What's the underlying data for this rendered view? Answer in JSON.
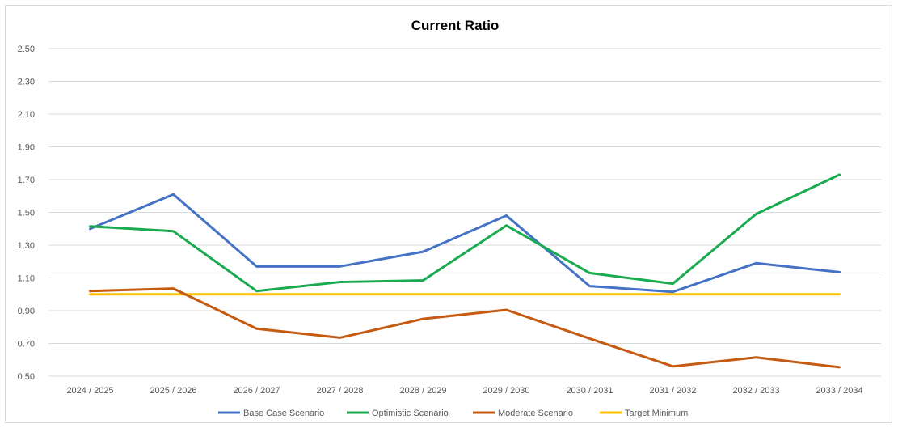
{
  "chart_data": {
    "type": "line",
    "title": "Current Ratio",
    "xlabel": "",
    "ylabel": "",
    "categories": [
      "2024 / 2025",
      "2025 / 2026",
      "2026 / 2027",
      "2027 / 2028",
      "2028 / 2029",
      "2029 / 2030",
      "2030 / 2031",
      "2031 / 2032",
      "2032 / 2033",
      "2033 / 2034"
    ],
    "ylim": [
      0.5,
      2.5
    ],
    "yticks": [
      "0.50",
      "0.70",
      "0.90",
      "1.10",
      "1.30",
      "1.50",
      "1.70",
      "1.90",
      "2.10",
      "2.30",
      "2.50"
    ],
    "grid": true,
    "legend_position": "bottom",
    "series": [
      {
        "name": "Base Case Scenario",
        "color": "#4472c4",
        "values": [
          1.4,
          1.61,
          1.17,
          1.17,
          1.26,
          1.48,
          1.05,
          1.015,
          1.19,
          1.135
        ]
      },
      {
        "name": "Optimistic Scenario",
        "color": "#1aab50",
        "values": [
          1.415,
          1.385,
          1.02,
          1.075,
          1.085,
          1.42,
          1.13,
          1.065,
          1.49,
          1.73
        ]
      },
      {
        "name": "Moderate Scenario",
        "color": "#c55a11",
        "values": [
          1.02,
          1.035,
          0.79,
          0.735,
          0.85,
          0.905,
          0.73,
          0.56,
          0.615,
          0.555
        ]
      },
      {
        "name": "Target Minimum",
        "color": "#ffc000",
        "values": [
          1.0,
          1.0,
          1.0,
          1.0,
          1.0,
          1.0,
          1.0,
          1.0,
          1.0,
          1.0
        ]
      }
    ]
  }
}
